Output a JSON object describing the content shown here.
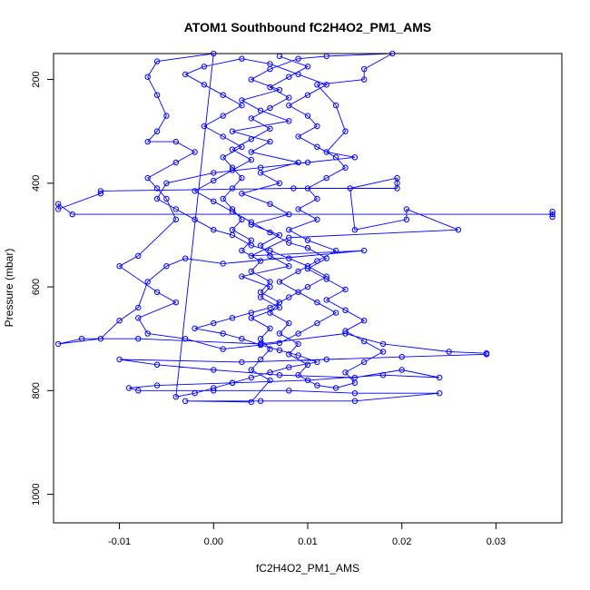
{
  "chart_data": {
    "type": "scatter",
    "title": "ATOM1 Southbound fC2H4O2_PM1_AMS",
    "xlabel": "fC2H4O2_PM1_AMS",
    "ylabel": "Pressure (mbar)",
    "xlim": [
      -0.017,
      0.037
    ],
    "ylim": [
      1055,
      150
    ],
    "y_reversed": true,
    "x_ticks": [
      -0.01,
      0.0,
      0.01,
      0.02,
      0.03
    ],
    "x_tick_labels": [
      "-0.01",
      "0.00",
      "0.01",
      "0.02",
      "0.03"
    ],
    "y_ticks": [
      200,
      400,
      600,
      800,
      1000
    ],
    "y_tick_labels": [
      "200",
      "400",
      "600",
      "800",
      "1000"
    ],
    "grid": false,
    "legend": "none",
    "marker": "open-circle",
    "connected": true,
    "series": [
      {
        "color": "#0000ff",
        "points": [
          [
            0.036,
            465
          ],
          [
            0.036,
            455
          ],
          [
            0.036,
            460
          ],
          [
            -0.015,
            460
          ],
          [
            -0.0165,
            440
          ],
          [
            -0.0165,
            450
          ],
          [
            -0.012,
            420
          ],
          [
            -0.012,
            415
          ],
          [
            0.0085,
            410
          ],
          [
            0.0195,
            410
          ],
          [
            0.0195,
            400
          ],
          [
            0.0195,
            390
          ],
          [
            0.0145,
            410
          ],
          [
            0.015,
            490
          ],
          [
            0.0205,
            470
          ],
          [
            0.0205,
            450
          ],
          [
            0.026,
            490
          ],
          [
            0.008,
            505
          ],
          [
            0.004,
            540
          ],
          [
            0.016,
            530
          ],
          [
            0.001,
            555
          ],
          [
            -0.003,
            545
          ],
          [
            -0.005,
            560
          ],
          [
            -0.007,
            590
          ],
          [
            -0.008,
            640
          ],
          [
            -0.01,
            665
          ],
          [
            -0.012,
            700
          ],
          [
            -0.0165,
            710
          ],
          [
            -0.014,
            700
          ],
          [
            -0.008,
            700
          ],
          [
            0.005,
            710
          ],
          [
            0.014,
            690
          ],
          [
            0.018,
            710
          ],
          [
            0.025,
            725
          ],
          [
            0.029,
            728
          ],
          [
            0.029,
            730
          ],
          [
            0.02,
            735
          ],
          [
            0.012,
            740
          ],
          [
            0.003,
            745
          ],
          [
            -0.01,
            740
          ],
          [
            -0.006,
            750
          ],
          [
            0.0,
            760
          ],
          [
            0.007,
            770
          ],
          [
            0.015,
            775
          ],
          [
            0.02,
            760
          ],
          [
            0.024,
            775
          ],
          [
            0.018,
            770
          ],
          [
            0.01,
            780
          ],
          [
            0.002,
            785
          ],
          [
            -0.006,
            790
          ],
          [
            -0.009,
            795
          ],
          [
            -0.008,
            800
          ],
          [
            0.0,
            800
          ],
          [
            0.008,
            800
          ],
          [
            0.015,
            805
          ],
          [
            0.024,
            805
          ],
          [
            0.015,
            820
          ],
          [
            0.005,
            820
          ],
          [
            -0.003,
            820
          ],
          [
            0.004,
            822
          ],
          [
            0.006,
            780
          ],
          [
            0.004,
            760
          ],
          [
            0.005,
            740
          ],
          [
            0.006,
            720
          ],
          [
            0.005,
            700
          ],
          [
            0.006,
            680
          ],
          [
            0.004,
            660
          ],
          [
            0.007,
            640
          ],
          [
            0.005,
            620
          ],
          [
            0.006,
            600
          ],
          [
            0.003,
            580
          ],
          [
            0.008,
            560
          ],
          [
            0.006,
            540
          ],
          [
            0.005,
            520
          ],
          [
            0.007,
            500
          ],
          [
            0.004,
            480
          ],
          [
            0.008,
            460
          ],
          [
            0.006,
            440
          ],
          [
            0.003,
            420
          ],
          [
            0.007,
            400
          ],
          [
            0.005,
            380
          ],
          [
            0.009,
            360
          ],
          [
            0.004,
            340
          ],
          [
            0.006,
            320
          ],
          [
            0.002,
            300
          ],
          [
            0.008,
            280
          ],
          [
            0.005,
            260
          ],
          [
            0.003,
            240
          ],
          [
            0.007,
            220
          ],
          [
            0.004,
            200
          ],
          [
            0.006,
            180
          ],
          [
            0.009,
            160
          ],
          [
            0.012,
            155
          ],
          [
            0.019,
            150
          ],
          [
            0.016,
            180
          ],
          [
            0.016,
            200
          ],
          [
            0.011,
            210
          ],
          [
            0.013,
            250
          ],
          [
            0.014,
            300
          ],
          [
            0.012,
            340
          ],
          [
            0.015,
            350
          ],
          [
            0.01,
            360
          ],
          [
            0.005,
            370
          ],
          [
            0.0,
            380
          ],
          [
            -0.005,
            400
          ],
          [
            -0.006,
            430
          ],
          [
            -0.004,
            450
          ],
          [
            -0.002,
            470
          ],
          [
            0.0,
            490
          ],
          [
            0.002,
            500
          ],
          [
            0.004,
            520
          ],
          [
            0.006,
            530
          ],
          [
            0.008,
            545
          ],
          [
            0.01,
            560
          ],
          [
            0.012,
            580
          ],
          [
            0.01,
            600
          ],
          [
            0.008,
            620
          ],
          [
            0.006,
            640
          ],
          [
            0.004,
            650
          ],
          [
            0.002,
            660
          ],
          [
            0.0,
            670
          ],
          [
            -0.002,
            680
          ],
          [
            0.001,
            690
          ],
          [
            0.003,
            700
          ],
          [
            0.005,
            712
          ],
          [
            0.007,
            722
          ],
          [
            0.009,
            732
          ],
          [
            0.011,
            745
          ],
          [
            0.008,
            755
          ],
          [
            0.006,
            765
          ],
          [
            0.004,
            775
          ],
          [
            0.002,
            785
          ],
          [
            0.0,
            795
          ],
          [
            -0.002,
            805
          ],
          [
            -0.004,
            812
          ],
          [
            0.0,
            150
          ],
          [
            -0.006,
            165
          ],
          [
            -0.007,
            195
          ],
          [
            -0.006,
            230
          ],
          [
            -0.005,
            270
          ],
          [
            -0.006,
            300
          ],
          [
            -0.007,
            320
          ],
          [
            -0.004,
            320
          ],
          [
            -0.002,
            340
          ],
          [
            -0.004,
            360
          ],
          [
            -0.007,
            390
          ],
          [
            -0.006,
            410
          ],
          [
            -0.005,
            430
          ],
          [
            -0.004,
            470
          ],
          [
            -0.008,
            540
          ],
          [
            -0.01,
            560
          ],
          [
            -0.006,
            610
          ],
          [
            -0.004,
            630
          ],
          [
            -0.008,
            660
          ],
          [
            -0.007,
            690
          ],
          [
            -0.003,
            700
          ],
          [
            0.001,
            720
          ],
          [
            0.007,
            708
          ],
          [
            0.009,
            690
          ],
          [
            0.011,
            670
          ],
          [
            0.013,
            650
          ],
          [
            0.011,
            630
          ],
          [
            0.009,
            610
          ],
          [
            0.007,
            590
          ],
          [
            0.009,
            570
          ],
          [
            0.011,
            550
          ],
          [
            0.013,
            530
          ],
          [
            0.01,
            510
          ],
          [
            0.008,
            490
          ],
          [
            0.011,
            470
          ],
          [
            0.009,
            450
          ],
          [
            0.011,
            430
          ],
          [
            0.01,
            410
          ],
          [
            0.012,
            390
          ],
          [
            0.014,
            370
          ],
          [
            0.013,
            350
          ],
          [
            0.011,
            330
          ],
          [
            0.009,
            310
          ],
          [
            0.011,
            290
          ],
          [
            0.01,
            270
          ],
          [
            0.008,
            250
          ],
          [
            0.01,
            230
          ],
          [
            0.012,
            210
          ],
          [
            0.009,
            190
          ],
          [
            0.006,
            170
          ],
          [
            0.003,
            160
          ],
          [
            -0.001,
            175
          ],
          [
            -0.003,
            190
          ],
          [
            -0.001,
            210
          ],
          [
            0.001,
            230
          ],
          [
            0.003,
            250
          ],
          [
            0.001,
            270
          ],
          [
            -0.001,
            290
          ],
          [
            0.001,
            310
          ],
          [
            0.003,
            330
          ],
          [
            0.001,
            350
          ],
          [
            0.002,
            370
          ],
          [
            0.003,
            390
          ],
          [
            0.002,
            410
          ],
          [
            0.001,
            430
          ],
          [
            0.002,
            450
          ],
          [
            0.003,
            470
          ],
          [
            0.002,
            490
          ],
          [
            0.004,
            510
          ],
          [
            0.003,
            530
          ],
          [
            0.005,
            550
          ],
          [
            0.004,
            570
          ],
          [
            0.006,
            590
          ],
          [
            0.005,
            610
          ],
          [
            0.007,
            630
          ],
          [
            0.006,
            650
          ],
          [
            0.008,
            670
          ],
          [
            0.007,
            690
          ],
          [
            0.009,
            710
          ],
          [
            0.008,
            730
          ],
          [
            0.01,
            750
          ],
          [
            0.009,
            770
          ],
          [
            0.011,
            790
          ],
          [
            0.013,
            795
          ],
          [
            0.015,
            785
          ],
          [
            0.014,
            765
          ],
          [
            0.016,
            745
          ],
          [
            0.018,
            725
          ],
          [
            0.016,
            705
          ],
          [
            0.014,
            685
          ],
          [
            0.016,
            665
          ],
          [
            0.014,
            645
          ],
          [
            0.012,
            625
          ],
          [
            0.014,
            605
          ],
          [
            0.012,
            585
          ],
          [
            0.01,
            565
          ],
          [
            0.012,
            545
          ],
          [
            0.01,
            525
          ],
          [
            0.008,
            515
          ],
          [
            0.006,
            495
          ],
          [
            0.004,
            475
          ],
          [
            0.002,
            455
          ],
          [
            0.0,
            435
          ],
          [
            -0.002,
            415
          ],
          [
            0.0,
            395
          ],
          [
            0.002,
            375
          ],
          [
            0.004,
            355
          ],
          [
            0.002,
            335
          ],
          [
            0.004,
            315
          ],
          [
            0.006,
            295
          ],
          [
            0.004,
            275
          ],
          [
            0.006,
            255
          ],
          [
            0.008,
            235
          ],
          [
            0.006,
            215
          ],
          [
            0.008,
            195
          ],
          [
            0.01,
            175
          ],
          [
            0.007,
            155
          ]
        ]
      }
    ]
  }
}
